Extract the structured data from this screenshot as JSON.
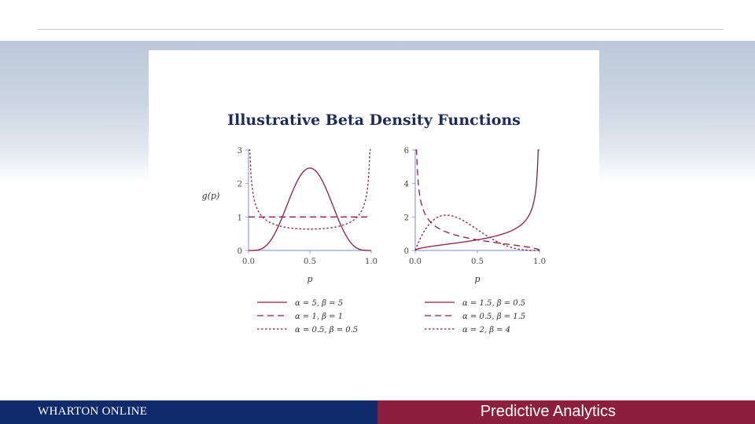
{
  "slide": {
    "title": "Illustrative Beta Density Functions"
  },
  "footer": {
    "brand": "WHARTON ONLINE",
    "course": "Predictive Analytics"
  },
  "colors": {
    "curve": "#8c1f3e",
    "axis": "#8fa3d0",
    "footer_left": "#0f2b6b",
    "footer_right": "#8c1f3e"
  },
  "chart_data": [
    {
      "type": "line",
      "title": "",
      "xlabel": "p",
      "ylabel": "g(p)",
      "xlim": [
        0,
        1
      ],
      "ylim": [
        0,
        3
      ],
      "x_ticks": [
        "0.0",
        "0.5",
        "1.0"
      ],
      "y_ticks": [
        "0",
        "1",
        "2",
        "3"
      ],
      "legend_position": "bottom",
      "series": [
        {
          "name": "α = 5, β = 5",
          "alpha": 5,
          "beta": 5,
          "dash": "solid"
        },
        {
          "name": "α = 1, β = 1",
          "alpha": 1,
          "beta": 1,
          "dash": "dashed"
        },
        {
          "name": "α = 0.5, β = 0.5",
          "alpha": 0.5,
          "beta": 0.5,
          "dash": "dotted"
        }
      ]
    },
    {
      "type": "line",
      "title": "",
      "xlabel": "p",
      "ylabel": "",
      "xlim": [
        0,
        1
      ],
      "ylim": [
        0,
        6
      ],
      "x_ticks": [
        "0.0",
        "0.5",
        "1.0"
      ],
      "y_ticks": [
        "0",
        "2",
        "4",
        "6"
      ],
      "legend_position": "bottom",
      "series": [
        {
          "name": "α = 1.5, β = 0.5",
          "alpha": 1.5,
          "beta": 0.5,
          "dash": "solid"
        },
        {
          "name": "α = 0.5, β = 1.5",
          "alpha": 0.5,
          "beta": 1.5,
          "dash": "dashed"
        },
        {
          "name": "α = 2, β = 4",
          "alpha": 2,
          "beta": 4,
          "dash": "dotted"
        }
      ]
    }
  ]
}
